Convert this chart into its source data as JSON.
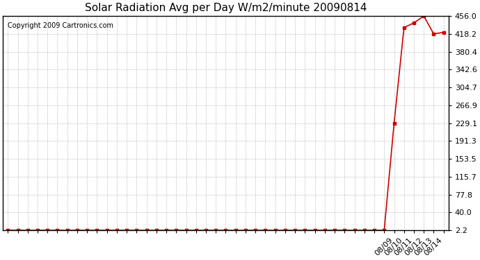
{
  "title": "Solar Radiation Avg per Day W/m2/minute 20090814",
  "copyright_text": "Copyright 2009 Cartronics.com",
  "line_color": "#cc0000",
  "marker": "s",
  "marker_size": 3,
  "background_color": "#ffffff",
  "plot_bg_color": "#ffffff",
  "grid_color": "#aaaaaa",
  "x_indices": [
    0,
    1,
    2,
    3,
    4,
    5,
    6,
    7,
    8,
    9,
    10,
    11,
    12,
    13,
    14,
    15,
    16,
    17,
    18,
    19,
    20,
    21,
    22,
    23,
    24,
    25,
    26,
    27,
    28,
    29,
    30,
    31,
    32,
    33,
    34,
    35,
    36,
    37,
    38,
    39,
    40,
    41,
    42,
    43,
    44
  ],
  "y_values": [
    2.2,
    2.2,
    2.2,
    2.2,
    2.2,
    2.2,
    2.2,
    2.2,
    2.2,
    2.2,
    2.2,
    2.2,
    2.2,
    2.2,
    2.2,
    2.2,
    2.2,
    2.2,
    2.2,
    2.2,
    2.2,
    2.2,
    2.2,
    2.2,
    2.2,
    2.2,
    2.2,
    2.2,
    2.2,
    2.2,
    2.2,
    2.2,
    2.2,
    2.2,
    2.2,
    2.2,
    2.2,
    2.2,
    2.2,
    229.1,
    431.5,
    441.5,
    456.0,
    418.2,
    421.5
  ],
  "x_labels_all": [
    "",
    "",
    "",
    "",
    "",
    "",
    "",
    "",
    "",
    "",
    "",
    "",
    "",
    "",
    "",
    "",
    "",
    "",
    "",
    "",
    "",
    "",
    "",
    "",
    "",
    "",
    "",
    "",
    "",
    "",
    "",
    "",
    "",
    "",
    "",
    "",
    "",
    "",
    "",
    "08/09",
    "08/10",
    "08/11",
    "08/12",
    "08/13",
    "08/14"
  ],
  "yticks": [
    2.2,
    40.0,
    77.8,
    115.7,
    153.5,
    191.3,
    229.1,
    266.9,
    304.7,
    342.6,
    380.4,
    418.2,
    456.0
  ],
  "ylim": [
    2.2,
    456.0
  ],
  "xlim_min": -0.5,
  "xlim_max": 44.5
}
